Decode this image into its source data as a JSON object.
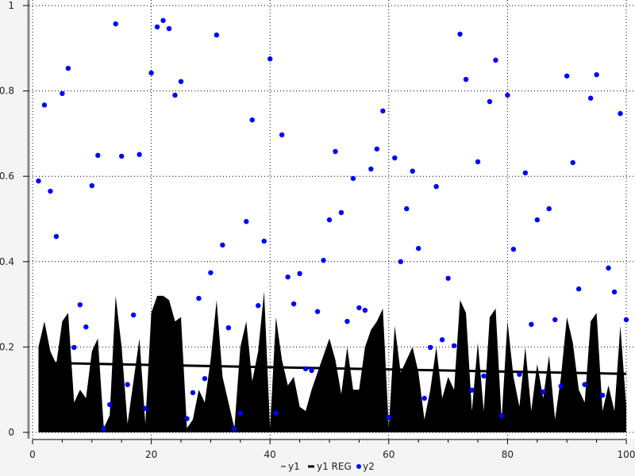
{
  "chart_data": {
    "type": "area",
    "title": "",
    "xlabel": "",
    "ylabel": "",
    "xlim": [
      0,
      100
    ],
    "ylim": [
      0,
      1
    ],
    "grid": true,
    "legend_position": "bottom",
    "x_ticks": [
      "0",
      "20",
      "40",
      "60",
      "80",
      "100"
    ],
    "y_ticks": [
      "0",
      "0.2",
      "0.4",
      "0.6",
      "0.8",
      "1"
    ],
    "series": [
      {
        "name": "y1",
        "kind": "filled-area",
        "color": "#000000",
        "values": [
          0.2,
          0.26,
          0.19,
          0.16,
          0.26,
          0.28,
          0.07,
          0.1,
          0.08,
          0.19,
          0.22,
          0.01,
          0.04,
          0.32,
          0.2,
          0.02,
          0.12,
          0.22,
          0.02,
          0.28,
          0.32,
          0.32,
          0.31,
          0.26,
          0.27,
          0.01,
          0.03,
          0.1,
          0.07,
          0.17,
          0.31,
          0.13,
          0.07,
          0.01,
          0.2,
          0.26,
          0.12,
          0.19,
          0.33,
          0.01,
          0.27,
          0.17,
          0.11,
          0.13,
          0.06,
          0.05,
          0.1,
          0.14,
          0.18,
          0.22,
          0.17,
          0.09,
          0.2,
          0.1,
          0.1,
          0.2,
          0.24,
          0.26,
          0.29,
          0.01,
          0.25,
          0.14,
          0.17,
          0.2,
          0.14,
          0.03,
          0.1,
          0.2,
          0.08,
          0.13,
          0.1,
          0.31,
          0.28,
          0.05,
          0.21,
          0.05,
          0.27,
          0.29,
          0.03,
          0.26,
          0.13,
          0.06,
          0.2,
          0.05,
          0.16,
          0.08,
          0.18,
          0.03,
          0.13,
          0.27,
          0.21,
          0.1,
          0.07,
          0.26,
          0.28,
          0.05,
          0.11,
          0.05,
          0.25,
          0.06
        ]
      },
      {
        "name": "y1 REG",
        "kind": "line",
        "color": "#000000",
        "x": [
          1,
          100
        ],
        "values": [
          0.163,
          0.137
        ]
      },
      {
        "name": "y2",
        "kind": "scatter",
        "color": "#0000ff",
        "values": [
          0.589,
          0.767,
          0.565,
          0.459,
          0.794,
          0.853,
          0.199,
          0.299,
          0.247,
          0.578,
          0.649,
          0.009,
          0.065,
          0.957,
          0.647,
          0.112,
          0.275,
          0.651,
          0.056,
          0.842,
          0.95,
          0.965,
          0.946,
          0.79,
          0.822,
          0.032,
          0.093,
          0.314,
          0.126,
          0.374,
          0.931,
          0.439,
          0.245,
          0.009,
          0.045,
          0.494,
          0.732,
          0.297,
          0.448,
          0.875,
          0.045,
          0.697,
          0.364,
          0.301,
          0.372,
          0.149,
          0.145,
          0.283,
          0.403,
          0.498,
          0.658,
          0.515,
          0.26,
          0.595,
          0.292,
          0.286,
          0.617,
          0.664,
          0.753,
          0.035,
          0.643,
          0.4,
          0.524,
          0.612,
          0.431,
          0.08,
          0.199,
          0.576,
          0.217,
          0.361,
          0.203,
          0.933,
          0.827,
          0.099,
          0.634,
          0.132,
          0.775,
          0.872,
          0.039,
          0.79,
          0.429,
          0.136,
          0.608,
          0.253,
          0.498,
          0.095,
          0.524,
          0.264,
          0.108,
          0.835,
          0.632,
          0.336,
          0.112,
          0.783,
          0.838,
          0.087,
          0.385,
          0.329,
          0.747,
          0.264
        ]
      }
    ]
  }
}
